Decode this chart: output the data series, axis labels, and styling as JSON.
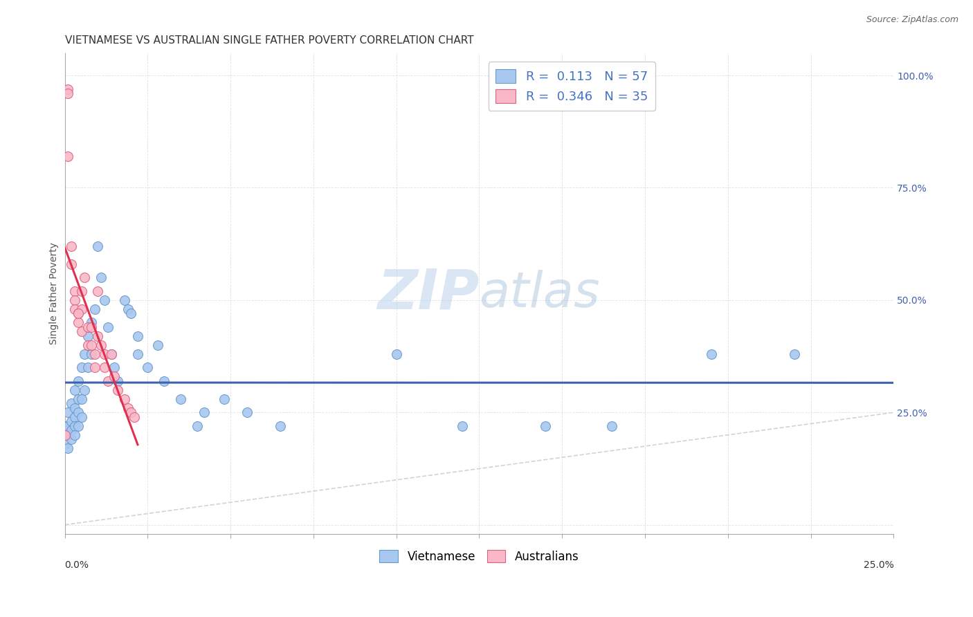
{
  "title": "VIETNAMESE VS AUSTRALIAN SINGLE FATHER POVERTY CORRELATION CHART",
  "source": "Source: ZipAtlas.com",
  "ylabel": "Single Father Poverty",
  "xlim": [
    0.0,
    0.25
  ],
  "ylim": [
    -0.02,
    1.05
  ],
  "legend1_R": "0.113",
  "legend1_N": "57",
  "legend2_R": "0.346",
  "legend2_N": "35",
  "blue_scatter_color": "#A8C8F0",
  "blue_edge_color": "#6699CC",
  "pink_scatter_color": "#F8B8C8",
  "pink_edge_color": "#E06080",
  "blue_line_color": "#4060B0",
  "pink_line_color": "#E03050",
  "diagonal_color": "#C8C8C8",
  "watermark_color": "#C8D8EE",
  "vietnamese_x": [
    0.0,
    0.0,
    0.0,
    0.001,
    0.001,
    0.001,
    0.001,
    0.002,
    0.002,
    0.002,
    0.002,
    0.003,
    0.003,
    0.003,
    0.003,
    0.003,
    0.004,
    0.004,
    0.004,
    0.004,
    0.005,
    0.005,
    0.005,
    0.006,
    0.006,
    0.007,
    0.007,
    0.008,
    0.008,
    0.009,
    0.01,
    0.011,
    0.012,
    0.013,
    0.014,
    0.015,
    0.016,
    0.018,
    0.019,
    0.02,
    0.022,
    0.022,
    0.025,
    0.028,
    0.03,
    0.035,
    0.04,
    0.042,
    0.048,
    0.055,
    0.065,
    0.1,
    0.12,
    0.145,
    0.165,
    0.195,
    0.22
  ],
  "vietnamese_y": [
    0.22,
    0.2,
    0.18,
    0.25,
    0.22,
    0.2,
    0.17,
    0.27,
    0.23,
    0.21,
    0.19,
    0.3,
    0.26,
    0.24,
    0.22,
    0.2,
    0.32,
    0.28,
    0.25,
    0.22,
    0.35,
    0.28,
    0.24,
    0.38,
    0.3,
    0.42,
    0.35,
    0.45,
    0.38,
    0.48,
    0.62,
    0.55,
    0.5,
    0.44,
    0.38,
    0.35,
    0.32,
    0.5,
    0.48,
    0.47,
    0.42,
    0.38,
    0.35,
    0.4,
    0.32,
    0.28,
    0.22,
    0.25,
    0.28,
    0.25,
    0.22,
    0.38,
    0.22,
    0.22,
    0.22,
    0.38,
    0.38
  ],
  "australians_x": [
    0.0,
    0.001,
    0.001,
    0.001,
    0.002,
    0.002,
    0.003,
    0.003,
    0.003,
    0.004,
    0.004,
    0.005,
    0.005,
    0.005,
    0.006,
    0.007,
    0.007,
    0.008,
    0.008,
    0.009,
    0.009,
    0.01,
    0.01,
    0.011,
    0.012,
    0.012,
    0.013,
    0.014,
    0.015,
    0.016,
    0.018,
    0.019,
    0.02,
    0.021,
    0.004
  ],
  "australians_y": [
    0.2,
    0.97,
    0.96,
    0.82,
    0.62,
    0.58,
    0.52,
    0.5,
    0.48,
    0.47,
    0.45,
    0.52,
    0.48,
    0.43,
    0.55,
    0.44,
    0.4,
    0.44,
    0.4,
    0.38,
    0.35,
    0.52,
    0.42,
    0.4,
    0.38,
    0.35,
    0.32,
    0.38,
    0.33,
    0.3,
    0.28,
    0.26,
    0.25,
    0.24,
    0.47
  ],
  "viet_trend_x0": 0.0,
  "viet_trend_x1": 0.25,
  "aust_trend_x0": 0.0,
  "aust_trend_x1": 0.022,
  "ytick_positions": [
    0.0,
    0.25,
    0.5,
    0.75,
    1.0
  ],
  "ytick_labels": [
    "",
    "25.0%",
    "50.0%",
    "75.0%",
    "100.0%"
  ],
  "xtick_positions": [
    0.0,
    0.025,
    0.05,
    0.075,
    0.1,
    0.125,
    0.15,
    0.175,
    0.2,
    0.225,
    0.25
  ],
  "grid_color": "#E0E0E0",
  "axis_color": "#AAAAAA",
  "title_fontsize": 11,
  "label_fontsize": 10,
  "tick_fontsize": 10,
  "scatter_size": 100
}
